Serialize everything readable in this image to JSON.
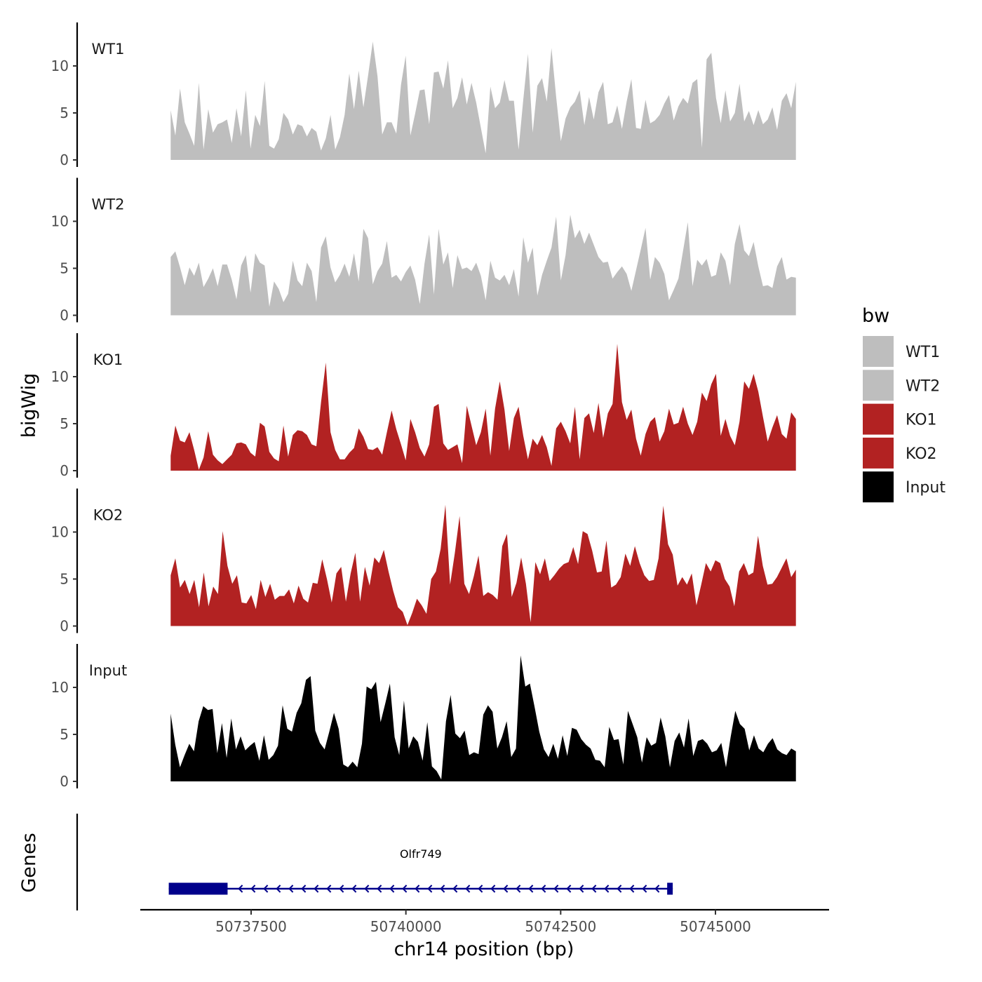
{
  "chart_data": {
    "type": "area",
    "chromosome": "chr14",
    "xlabel": "chr14 position (bp)",
    "ylabel": "bigWig",
    "genes_label": "Genes",
    "x_range": [
      50735600,
      50746600
    ],
    "x_ticks": [
      50737500,
      50740000,
      50742500,
      50745000
    ],
    "x_tick_labels": [
      "50737500",
      "50740000",
      "50742500",
      "50745000"
    ],
    "y_range": [
      0,
      14.5
    ],
    "y_ticks": [
      0,
      5,
      10
    ],
    "y_tick_labels": [
      "0",
      "5",
      "10"
    ],
    "legend": {
      "title": "bw",
      "entries": [
        {
          "name": "WT1",
          "color": "#bebebe"
        },
        {
          "name": "WT2",
          "color": "#bebebe"
        },
        {
          "name": "KO1",
          "color": "#b22222"
        },
        {
          "name": "KO2",
          "color": "#b22222"
        },
        {
          "name": "Input",
          "color": "#000000"
        }
      ]
    },
    "tracks": [
      {
        "name": "WT1",
        "color": "#bebebe",
        "start": 50736200,
        "end": 50746300,
        "values": [
          5.3,
          2.6,
          7.6,
          4.0,
          2.8,
          1.5,
          8.2,
          1.1,
          5.4,
          2.9,
          3.8,
          4.0,
          4.3,
          1.8,
          5.5,
          2.5,
          7.4,
          1.2,
          4.8,
          3.6,
          8.4,
          1.5,
          1.2,
          2.2,
          5.0,
          4.3,
          2.7,
          3.8,
          3.6,
          2.5,
          3.4,
          3.0,
          1.0,
          2.3,
          4.8,
          1.1,
          2.4,
          4.8,
          9.2,
          5.4,
          9.5,
          5.6,
          9.0,
          12.6,
          8.9,
          2.7,
          4.0,
          4.0,
          2.8,
          8.0,
          11.1,
          2.6,
          4.9,
          7.4,
          7.5,
          3.8,
          9.3,
          9.4,
          7.6,
          10.6,
          5.5,
          6.6,
          8.8,
          5.9,
          8.2,
          6.1,
          3.4,
          0.7,
          7.8,
          5.5,
          6.1,
          8.5,
          6.3,
          6.3,
          1.1,
          6.4,
          11.3,
          2.9,
          7.9,
          8.7,
          6.2,
          11.9,
          6.7,
          2.0,
          4.4,
          5.6,
          6.2,
          7.4,
          3.7,
          6.7,
          4.3,
          7.2,
          8.3,
          3.8,
          4.0,
          5.8,
          3.3,
          6.2,
          8.6,
          3.4,
          3.3,
          6.4,
          3.9,
          4.2,
          4.8,
          6.0,
          6.9,
          4.2,
          5.7,
          6.6,
          6.0,
          8.2,
          8.6,
          1.3,
          10.7,
          11.4,
          6.6,
          3.9,
          7.4,
          4.1,
          5.0,
          8.1,
          4.1,
          5.2,
          3.7,
          5.3,
          3.8,
          4.3,
          5.6,
          3.2,
          6.3,
          7.1,
          5.5,
          8.3
        ]
      },
      {
        "name": "WT2",
        "color": "#bebebe",
        "start": 50736200,
        "end": 50746300,
        "values": [
          6.2,
          6.8,
          5.1,
          3.2,
          5.1,
          4.2,
          5.6,
          3.0,
          3.9,
          5.0,
          3.1,
          5.4,
          5.4,
          3.8,
          1.7,
          5.3,
          6.4,
          2.4,
          6.6,
          5.6,
          5.3,
          0.9,
          3.6,
          2.8,
          1.4,
          2.3,
          5.8,
          3.7,
          3.1,
          5.6,
          4.7,
          1.4,
          7.2,
          8.4,
          5.1,
          3.5,
          4.3,
          5.5,
          4.1,
          6.6,
          3.6,
          9.2,
          8.2,
          3.3,
          4.7,
          5.5,
          7.9,
          4.0,
          4.3,
          3.6,
          4.6,
          5.3,
          3.8,
          1.2,
          5.5,
          8.6,
          2.2,
          9.2,
          5.4,
          6.7,
          2.9,
          6.4,
          4.9,
          5.1,
          4.7,
          5.6,
          4.2,
          1.6,
          5.8,
          4.0,
          3.7,
          4.3,
          3.2,
          4.9,
          2.0,
          8.3,
          5.6,
          7.2,
          2.1,
          4.3,
          5.8,
          7.2,
          10.5,
          3.7,
          6.4,
          10.7,
          8.2,
          9.1,
          7.6,
          8.8,
          7.5,
          6.2,
          5.6,
          5.7,
          3.9,
          4.6,
          5.2,
          4.4,
          2.6,
          4.8,
          7.0,
          9.3,
          3.8,
          6.2,
          5.6,
          4.4,
          1.6,
          2.7,
          3.9,
          6.9,
          9.9,
          3.1,
          5.9,
          5.3,
          6.0,
          4.1,
          4.3,
          6.7,
          5.8,
          3.2,
          7.6,
          9.7,
          6.9,
          6.3,
          7.8,
          5.2,
          3.1,
          3.2,
          2.9,
          5.2,
          6.2,
          3.8,
          4.1,
          4.0
        ]
      },
      {
        "name": "KO1",
        "color": "#b22222",
        "start": 50736200,
        "end": 50746300,
        "values": [
          1.6,
          4.8,
          3.2,
          3.0,
          4.1,
          2.2,
          0.1,
          1.4,
          4.2,
          1.7,
          1.1,
          0.7,
          1.2,
          1.7,
          2.9,
          3.0,
          2.8,
          1.9,
          1.5,
          5.1,
          4.7,
          2.0,
          1.3,
          1.0,
          4.8,
          1.5,
          3.8,
          4.3,
          4.2,
          3.8,
          2.8,
          2.6,
          7.3,
          11.5,
          4.1,
          2.2,
          1.2,
          1.2,
          1.9,
          2.4,
          4.5,
          3.6,
          2.3,
          2.2,
          2.5,
          1.7,
          4.1,
          6.4,
          4.4,
          2.8,
          1.1,
          5.5,
          4.1,
          2.4,
          1.5,
          2.8,
          6.8,
          7.1,
          2.9,
          2.2,
          2.5,
          2.8,
          0.8,
          6.9,
          4.8,
          2.7,
          4.1,
          6.6,
          1.6,
          6.6,
          9.5,
          6.5,
          2.1,
          5.6,
          6.8,
          3.7,
          1.2,
          3.4,
          2.7,
          3.8,
          2.5,
          0.5,
          4.5,
          5.2,
          4.2,
          2.9,
          6.8,
          1.2,
          5.6,
          6.1,
          4.0,
          7.2,
          3.5,
          6.1,
          7.1,
          13.5,
          7.3,
          5.4,
          6.5,
          3.4,
          1.6,
          3.9,
          5.2,
          5.7,
          3.1,
          4.2,
          6.6,
          4.9,
          5.1,
          6.8,
          5.0,
          3.8,
          5.2,
          8.3,
          7.4,
          9.2,
          10.3,
          3.7,
          5.5,
          3.7,
          2.7,
          5.2,
          9.5,
          8.7,
          10.3,
          8.4,
          5.7,
          3.1,
          4.6,
          5.9,
          3.9,
          3.4,
          6.2,
          5.5
        ]
      },
      {
        "name": "KO2",
        "color": "#b22222",
        "start": 50736200,
        "end": 50746300,
        "values": [
          5.4,
          7.2,
          4.1,
          4.9,
          3.4,
          4.9,
          2.0,
          5.7,
          2.1,
          4.2,
          3.4,
          10.1,
          6.4,
          4.5,
          5.4,
          2.5,
          2.4,
          3.3,
          1.8,
          4.9,
          3.1,
          4.5,
          2.8,
          3.2,
          3.2,
          3.9,
          2.4,
          4.3,
          2.9,
          2.5,
          4.6,
          4.5,
          7.1,
          5.0,
          2.5,
          5.6,
          6.3,
          2.6,
          5.6,
          7.8,
          2.6,
          6.3,
          4.3,
          7.3,
          6.7,
          8.1,
          5.8,
          3.7,
          2.0,
          1.5,
          0.1,
          1.4,
          2.9,
          2.2,
          1.3,
          5.0,
          5.8,
          8.2,
          12.9,
          4.4,
          7.8,
          11.7,
          4.5,
          3.4,
          5.3,
          7.5,
          3.2,
          3.6,
          3.3,
          2.8,
          8.5,
          9.8,
          3.1,
          4.6,
          7.3,
          4.5,
          0.4,
          6.8,
          5.5,
          7.2,
          4.8,
          5.4,
          6.1,
          6.6,
          6.8,
          8.4,
          6.6,
          10.1,
          9.8,
          8.0,
          5.7,
          5.8,
          9.1,
          4.1,
          4.4,
          5.2,
          7.7,
          6.4,
          8.5,
          6.7,
          5.4,
          4.8,
          4.9,
          7.2,
          12.8,
          8.7,
          7.6,
          4.3,
          5.2,
          4.4,
          5.6,
          2.2,
          4.4,
          6.7,
          5.8,
          7.0,
          6.7,
          5.0,
          4.2,
          2.1,
          5.8,
          6.7,
          5.4,
          5.7,
          9.6,
          6.4,
          4.4,
          4.5,
          5.2,
          6.2,
          7.2,
          5.2,
          6.0
        ]
      },
      {
        "name": "Input",
        "color": "#000000",
        "start": 50736200,
        "end": 50746300,
        "values": [
          7.2,
          3.9,
          1.5,
          2.8,
          4.0,
          3.2,
          6.4,
          8.0,
          7.6,
          7.7,
          3.0,
          6.2,
          2.5,
          6.7,
          3.4,
          4.8,
          3.3,
          3.8,
          4.2,
          2.2,
          4.9,
          2.3,
          2.8,
          3.8,
          8.1,
          5.6,
          5.3,
          7.3,
          8.3,
          10.8,
          11.2,
          5.4,
          4.1,
          3.4,
          5.3,
          7.3,
          5.6,
          1.8,
          1.5,
          2.1,
          1.5,
          4.0,
          10.1,
          9.8,
          10.6,
          6.3,
          8.3,
          10.4,
          4.7,
          2.8,
          8.6,
          3.5,
          4.8,
          4.2,
          2.2,
          6.3,
          1.6,
          1.1,
          0.2,
          6.4,
          9.2,
          5.1,
          4.6,
          5.4,
          2.8,
          3.1,
          2.9,
          7.1,
          8.1,
          7.4,
          3.5,
          4.7,
          6.4,
          2.6,
          3.5,
          13.4,
          10.1,
          10.4,
          7.9,
          5.3,
          3.4,
          2.6,
          4.0,
          2.4,
          4.9,
          2.7,
          5.7,
          5.5,
          4.5,
          3.9,
          3.5,
          2.3,
          2.2,
          1.5,
          5.8,
          4.4,
          4.5,
          1.8,
          7.5,
          6.1,
          4.7,
          2.0,
          4.7,
          3.8,
          4.1,
          6.8,
          4.8,
          1.5,
          4.3,
          5.2,
          3.6,
          6.7,
          2.7,
          4.3,
          4.5,
          4.0,
          3.1,
          3.3,
          4.1,
          1.5,
          4.7,
          7.5,
          6.1,
          5.6,
          3.3,
          4.9,
          3.5,
          3.1,
          4.0,
          4.6,
          3.4,
          3.0,
          2.8,
          3.5,
          3.2
        ]
      }
    ],
    "genes": [
      {
        "name": "Olfr749",
        "start": 50736170,
        "end": 50744310,
        "strand": "-",
        "color": "#00008b",
        "exons": [
          [
            50736170,
            50737120
          ],
          [
            50744220,
            50744310
          ]
        ]
      }
    ]
  }
}
